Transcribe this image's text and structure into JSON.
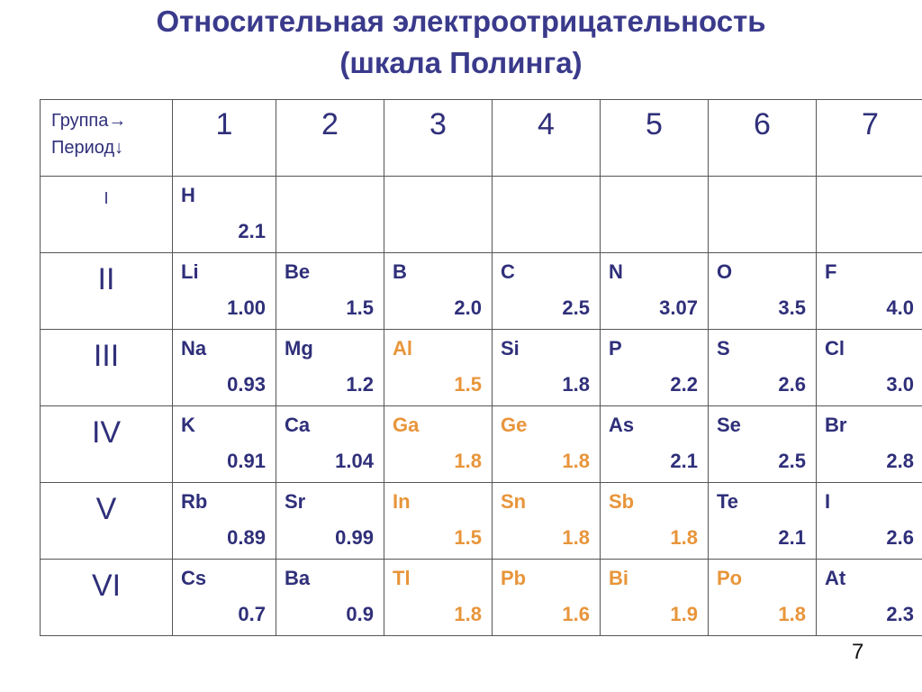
{
  "title": {
    "line1": "Относительная электроотрицательность",
    "line2": "(шкала Полинга)"
  },
  "table": {
    "corner_line1": "Группа→",
    "corner_line2": "Период↓",
    "groups": [
      "1",
      "2",
      "3",
      "4",
      "5",
      "6",
      "7"
    ],
    "periods": [
      "I",
      "II",
      "III",
      "IV",
      "V",
      "VI"
    ],
    "rows": [
      [
        {
          "sym": "H",
          "val": "2.1",
          "color": "#2f2f7a"
        },
        null,
        null,
        null,
        null,
        null,
        null
      ],
      [
        {
          "sym": "Li",
          "val": "1.00",
          "color": "#2f2f7a"
        },
        {
          "sym": "Be",
          "val": "1.5",
          "color": "#2f2f7a"
        },
        {
          "sym": "B",
          "val": "2.0",
          "color": "#2f2f7a"
        },
        {
          "sym": "C",
          "val": "2.5",
          "color": "#2f2f7a"
        },
        {
          "sym": "N",
          "val": "3.07",
          "color": "#2f2f7a"
        },
        {
          "sym": "O",
          "val": "3.5",
          "color": "#2f2f7a"
        },
        {
          "sym": "F",
          "val": "4.0",
          "color": "#2f2f7a"
        }
      ],
      [
        {
          "sym": "Na",
          "val": "0.93",
          "color": "#2f2f7a"
        },
        {
          "sym": "Mg",
          "val": "1.2",
          "color": "#2f2f7a"
        },
        {
          "sym": "Al",
          "val": "1.5",
          "color": "#e8953a"
        },
        {
          "sym": "Si",
          "val": "1.8",
          "color": "#2f2f7a"
        },
        {
          "sym": "P",
          "val": "2.2",
          "color": "#2f2f7a"
        },
        {
          "sym": "S",
          "val": "2.6",
          "color": "#2f2f7a"
        },
        {
          "sym": "Cl",
          "val": "3.0",
          "color": "#2f2f7a"
        }
      ],
      [
        {
          "sym": "K",
          "val": "0.91",
          "color": "#2f2f7a"
        },
        {
          "sym": "Ca",
          "val": "1.04",
          "color": "#2f2f7a"
        },
        {
          "sym": "Ga",
          "val": "1.8",
          "color": "#e8953a"
        },
        {
          "sym": "Ge",
          "val": "1.8",
          "color": "#e8953a"
        },
        {
          "sym": "As",
          "val": "2.1",
          "color": "#2f2f7a"
        },
        {
          "sym": "Se",
          "val": "2.5",
          "color": "#2f2f7a"
        },
        {
          "sym": "Br",
          "val": "2.8",
          "color": "#2f2f7a"
        }
      ],
      [
        {
          "sym": "Rb",
          "val": "0.89",
          "color": "#2f2f7a"
        },
        {
          "sym": "Sr",
          "val": "0.99",
          "color": "#2f2f7a"
        },
        {
          "sym": "In",
          "val": "1.5",
          "color": "#e8953a"
        },
        {
          "sym": "Sn",
          "val": "1.8",
          "color": "#e8953a"
        },
        {
          "sym": "Sb",
          "val": "1.8",
          "color": "#e8953a"
        },
        {
          "sym": "Te",
          "val": "2.1",
          "color": "#2f2f7a"
        },
        {
          "sym": "I",
          "val": "2.6",
          "color": "#2f2f7a"
        }
      ],
      [
        {
          "sym": "Cs",
          "val": "0.7",
          "color": "#2f2f7a"
        },
        {
          "sym": "Ba",
          "val": "0.9",
          "color": "#2f2f7a"
        },
        {
          "sym": "Tl",
          "val": "1.8",
          "color": "#e8953a"
        },
        {
          "sym": "Pb",
          "val": "1.6",
          "color": "#e8953a"
        },
        {
          "sym": "Bi",
          "val": "1.9",
          "color": "#e8953a"
        },
        {
          "sym": "Po",
          "val": "1.8",
          "color": "#e8953a"
        },
        {
          "sym": "At",
          "val": "2.3",
          "color": "#2f2f7a"
        }
      ]
    ]
  },
  "page_number": "7"
}
